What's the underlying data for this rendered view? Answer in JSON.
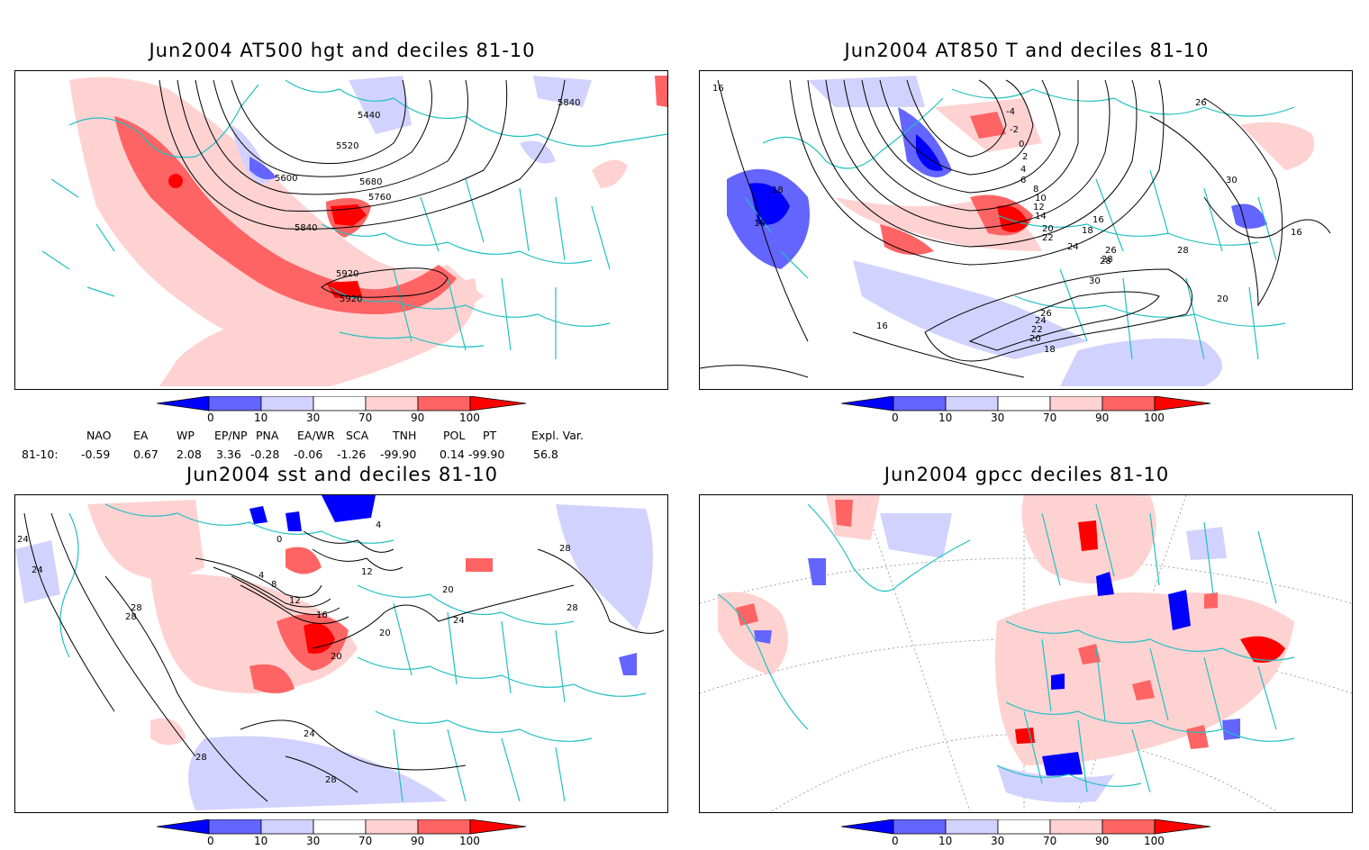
{
  "panels": [
    {
      "id": "hgt500",
      "title": "Jun2004 AT500 hgt and deciles 81-10",
      "contour_labels": [
        "5440",
        "5520",
        "5600",
        "5680",
        "5760",
        "5840",
        "5840",
        "5920",
        "5920"
      ]
    },
    {
      "id": "t850",
      "title": "Jun2004 AT850 T and deciles 81-10",
      "contour_labels": [
        "-4",
        "-2",
        "0",
        "2",
        "4",
        "6",
        "8",
        "10",
        "12",
        "14",
        "16",
        "18",
        "20",
        "22",
        "24",
        "26",
        "28",
        "30",
        "16",
        "18",
        "16",
        "16",
        "20",
        "30",
        "28",
        "26",
        "16",
        "18",
        "20",
        "22",
        "24",
        "26",
        "28"
      ]
    },
    {
      "id": "sst",
      "title": "Jun2004 sst and deciles 81-10",
      "contour_labels": [
        "24",
        "24",
        "28",
        "28",
        "28",
        "0",
        "4",
        "8",
        "12",
        "16",
        "20",
        "20",
        "24",
        "24",
        "28",
        "28",
        "28",
        "20",
        "12",
        "4"
      ]
    },
    {
      "id": "gpcc",
      "title": "Jun2004 gpcc deciles 81-10",
      "contour_labels": []
    }
  ],
  "colorbar": {
    "ticks": [
      "0",
      "10",
      "30",
      "70",
      "90",
      "100"
    ],
    "colors": {
      "deep_blue": "#0000ff",
      "mid_blue": "#6464ff",
      "light_blue": "#d2d2ff",
      "white": "#ffffff",
      "light_red": "#ffd2d2",
      "mid_red": "#ff6464",
      "deep_red": "#ff0000"
    }
  },
  "map_colors": {
    "coast": "#20c0c0",
    "contour": "#000000",
    "grid": "#909090"
  },
  "indices": {
    "headers": [
      "NAO",
      "EA",
      "WP",
      "EP/NP",
      "PNA",
      "EA/WR",
      "SCA",
      "TNH",
      "POL",
      "PT",
      "Expl. Var."
    ],
    "row_label": "81-10:",
    "values": [
      "-0.59",
      "0.67",
      "2.08",
      "3.36",
      "-0.28",
      "-0.06",
      "-1.26",
      "-99.90",
      "0.14",
      "-99.90",
      "56.8"
    ]
  }
}
